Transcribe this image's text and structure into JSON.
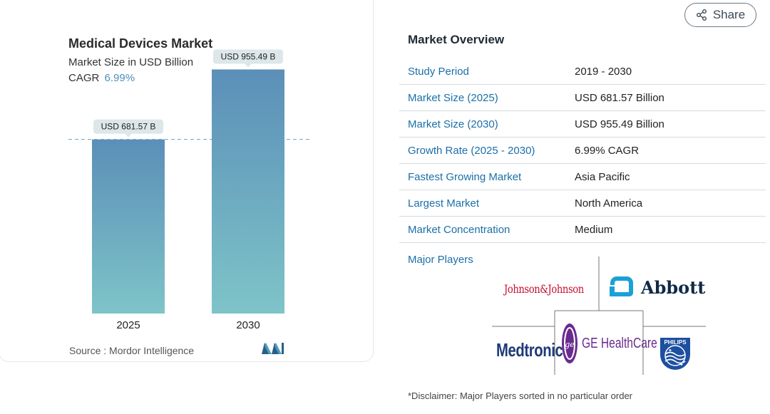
{
  "chart_data": {
    "type": "bar",
    "title": "Medical Devices Market",
    "subtitle": "Market Size in USD Billion",
    "cagr_label": "CAGR",
    "cagr_value": "6.99%",
    "categories": [
      "2025",
      "2030"
    ],
    "values": [
      681.57,
      955.49
    ],
    "data_labels": [
      "USD 681.57 B",
      "USD 955.49 B"
    ],
    "reference_line": {
      "value": 681.57,
      "style": "dashed"
    },
    "ylim": [
      0,
      1060
    ],
    "grid": false,
    "colors": {
      "bar_top": "#5b8fb8",
      "bar_bottom": "#7ec4c8",
      "label_bg": "#dde7ea",
      "ref_line": "#6a9ec0"
    },
    "source": "Source :  Mordor Intelligence"
  },
  "share": {
    "label": "Share",
    "icon": "share-icon"
  },
  "overview": {
    "title": "Market Overview",
    "rows": [
      {
        "label": "Study Period",
        "value": "2019 - 2030"
      },
      {
        "label": "Market Size (2025)",
        "value": "USD 681.57 Billion"
      },
      {
        "label": "Market Size (2030)",
        "value": "USD 955.49 Billion"
      },
      {
        "label": "Growth Rate (2025 - 2030)",
        "value": "6.99% CAGR"
      },
      {
        "label": "Fastest Growing Market",
        "value": "Asia Pacific"
      },
      {
        "label": "Largest Market",
        "value": "North America"
      },
      {
        "label": "Market Concentration",
        "value": "Medium"
      }
    ]
  },
  "major_players": {
    "title": "Major Players",
    "logos": {
      "jj": "Johnson&Johnson",
      "abbott": "Abbott",
      "medtronic": "Medtronic",
      "ge": "GE HealthCare",
      "philips": "PHILIPS"
    }
  },
  "disclaimer": "*Disclaimer: Major Players sorted in no particular order"
}
